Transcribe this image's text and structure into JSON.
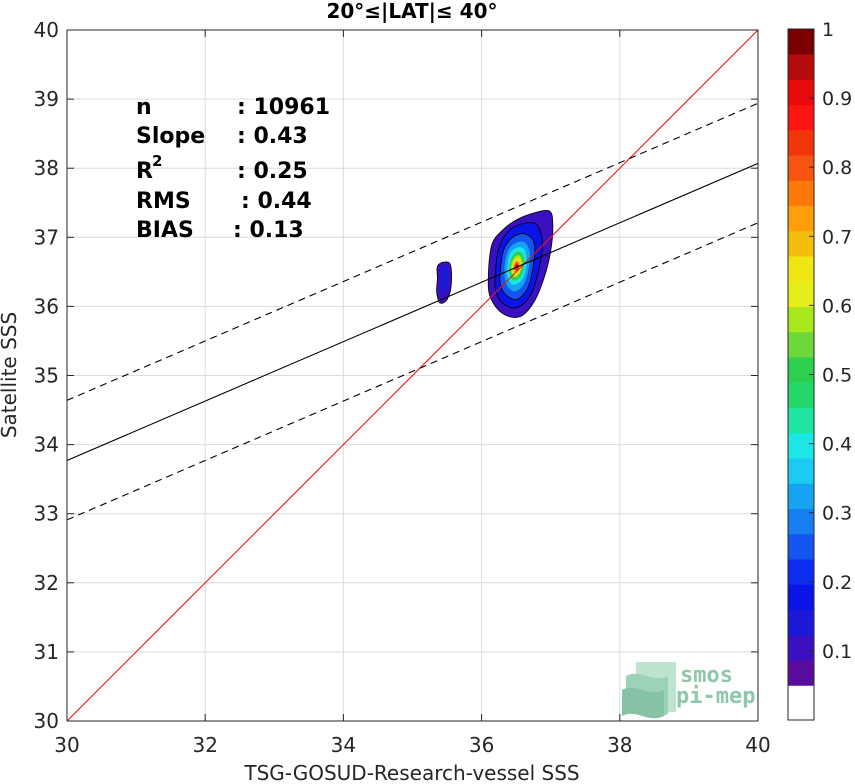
{
  "chart_data": {
    "type": "scatter",
    "title": "20°≤|LAT|≤ 40°",
    "xlabel": "TSG-GOSUD-Research-vessel SSS",
    "ylabel": "Satellite SSS",
    "xlim": [
      30,
      40
    ],
    "ylim": [
      30,
      40
    ],
    "x_ticks": [
      "30",
      "32",
      "34",
      "36",
      "38",
      "40"
    ],
    "y_ticks": [
      "30",
      "31",
      "32",
      "33",
      "34",
      "35",
      "36",
      "37",
      "38",
      "39",
      "40"
    ],
    "grid": true,
    "stats": {
      "n_label": "n",
      "n_value": ": 10961",
      "slope_label": "Slope",
      "slope_value": ": 0.43",
      "r2_label": "R",
      "r2_exp": "2",
      "r2_value": ": 0.25",
      "rms_label": "RMS",
      "rms_value": ": 0.44",
      "bias_label": "BIAS",
      "bias_value": ": 0.13"
    },
    "lines": [
      {
        "name": "identity",
        "style": "solid",
        "color": "#e8161a",
        "x": [
          30,
          40
        ],
        "y": [
          30,
          40
        ]
      },
      {
        "name": "regression",
        "style": "solid",
        "color": "#000000",
        "x": [
          30,
          40
        ],
        "y": [
          33.77,
          38.07
        ]
      },
      {
        "name": "upper bound",
        "style": "dashed",
        "color": "#000000",
        "x": [
          30,
          40
        ],
        "y": [
          34.64,
          38.94
        ]
      },
      {
        "name": "lower bound",
        "style": "dashed",
        "color": "#000000",
        "x": [
          30,
          40
        ],
        "y": [
          32.91,
          37.21
        ]
      }
    ],
    "density_contours": {
      "peak": [
        36.5,
        36.55
      ],
      "main_cluster": [
        {
          "level": 0.05,
          "color": "#3a10c0",
          "points": [
            [
              36.1,
              36.5
            ],
            [
              36.15,
              36.9
            ],
            [
              36.3,
              37.1
            ],
            [
              36.5,
              37.25
            ],
            [
              36.75,
              37.35
            ],
            [
              36.98,
              37.38
            ],
            [
              37.03,
              37.2
            ],
            [
              37.0,
              36.8
            ],
            [
              36.9,
              36.4
            ],
            [
              36.75,
              36.05
            ],
            [
              36.55,
              35.85
            ],
            [
              36.3,
              35.9
            ],
            [
              36.12,
              36.15
            ]
          ]
        },
        {
          "level": 0.1,
          "color": "#0a14e6",
          "points": [
            [
              36.2,
              36.5
            ],
            [
              36.25,
              36.85
            ],
            [
              36.4,
              37.1
            ],
            [
              36.6,
              37.2
            ],
            [
              36.8,
              37.18
            ],
            [
              36.88,
              36.9
            ],
            [
              36.82,
              36.5
            ],
            [
              36.7,
              36.15
            ],
            [
              36.5,
              35.98
            ],
            [
              36.3,
              36.05
            ],
            [
              36.2,
              36.25
            ]
          ]
        },
        {
          "level": 0.2,
          "color": "#1454ef",
          "points": [
            [
              36.27,
              36.52
            ],
            [
              36.32,
              36.82
            ],
            [
              36.45,
              37.0
            ],
            [
              36.62,
              37.05
            ],
            [
              36.76,
              36.92
            ],
            [
              36.75,
              36.6
            ],
            [
              36.66,
              36.25
            ],
            [
              36.5,
              36.1
            ],
            [
              36.34,
              36.18
            ],
            [
              36.27,
              36.32
            ]
          ]
        },
        {
          "level": 0.3,
          "color": "#16a4f2",
          "points": [
            [
              36.33,
              36.54
            ],
            [
              36.38,
              36.8
            ],
            [
              36.5,
              36.92
            ],
            [
              36.63,
              36.92
            ],
            [
              36.7,
              36.75
            ],
            [
              36.66,
              36.45
            ],
            [
              36.58,
              36.28
            ],
            [
              36.46,
              36.22
            ],
            [
              36.36,
              36.32
            ]
          ]
        },
        {
          "level": 0.4,
          "color": "#1ce6e6",
          "points": [
            [
              36.37,
              36.55
            ],
            [
              36.41,
              36.76
            ],
            [
              36.51,
              36.85
            ],
            [
              36.61,
              36.83
            ],
            [
              36.65,
              36.68
            ],
            [
              36.62,
              36.46
            ],
            [
              36.54,
              36.34
            ],
            [
              36.44,
              36.32
            ],
            [
              36.38,
              36.42
            ]
          ]
        },
        {
          "level": 0.5,
          "color": "#2cd050",
          "points": [
            [
              36.4,
              36.56
            ],
            [
              36.44,
              36.72
            ],
            [
              36.52,
              36.79
            ],
            [
              36.59,
              36.76
            ],
            [
              36.62,
              36.64
            ],
            [
              36.59,
              36.48
            ],
            [
              36.52,
              36.39
            ],
            [
              36.45,
              36.38
            ],
            [
              36.41,
              36.45
            ]
          ]
        },
        {
          "level": 0.6,
          "color": "#a8e61e",
          "points": [
            [
              36.42,
              36.56
            ],
            [
              36.46,
              36.69
            ],
            [
              36.52,
              36.74
            ],
            [
              36.57,
              36.71
            ],
            [
              36.59,
              36.6
            ],
            [
              36.56,
              36.5
            ],
            [
              36.51,
              36.43
            ],
            [
              36.46,
              36.43
            ],
            [
              36.43,
              36.49
            ]
          ]
        },
        {
          "level": 0.7,
          "color": "#f0e614",
          "points": [
            [
              36.44,
              36.56
            ],
            [
              36.47,
              36.66
            ],
            [
              36.52,
              36.7
            ],
            [
              36.56,
              36.67
            ],
            [
              36.57,
              36.58
            ],
            [
              36.55,
              36.5
            ],
            [
              36.51,
              36.46
            ],
            [
              36.47,
              36.46
            ],
            [
              36.45,
              36.5
            ]
          ]
        },
        {
          "level": 0.8,
          "color": "#ff9e0a",
          "points": [
            [
              36.46,
              36.56
            ],
            [
              36.48,
              36.64
            ],
            [
              36.52,
              36.66
            ],
            [
              36.55,
              36.63
            ],
            [
              36.55,
              36.57
            ],
            [
              36.53,
              36.51
            ],
            [
              36.5,
              36.49
            ],
            [
              36.47,
              36.5
            ]
          ]
        },
        {
          "level": 0.9,
          "color": "#f2360c",
          "points": [
            [
              36.47,
              36.56
            ],
            [
              36.49,
              36.62
            ],
            [
              36.52,
              36.63
            ],
            [
              36.54,
              36.59
            ],
            [
              36.53,
              36.54
            ],
            [
              36.51,
              36.52
            ],
            [
              36.48,
              36.53
            ]
          ]
        },
        {
          "level": 1.0,
          "color": "#b40c0c",
          "points": [
            [
              36.49,
              36.57
            ],
            [
              36.5,
              36.6
            ],
            [
              36.52,
              36.6
            ],
            [
              36.53,
              36.57
            ],
            [
              36.52,
              36.55
            ],
            [
              36.5,
              36.55
            ]
          ]
        }
      ],
      "secondary_cluster": [
        {
          "level": 0.05,
          "color": "#3a10c0",
          "points": [
            [
              35.36,
              36.4
            ],
            [
              35.36,
              36.58
            ],
            [
              35.45,
              36.64
            ],
            [
              35.55,
              36.6
            ],
            [
              35.56,
              36.3
            ],
            [
              35.5,
              36.1
            ],
            [
              35.4,
              36.05
            ],
            [
              35.35,
              36.2
            ]
          ]
        },
        {
          "level": 0.1,
          "color": "#1c18d8",
          "points": [
            [
              35.4,
              36.4
            ],
            [
              35.42,
              36.55
            ],
            [
              35.5,
              36.58
            ],
            [
              35.52,
              36.35
            ],
            [
              35.47,
              36.2
            ],
            [
              35.41,
              36.25
            ]
          ]
        }
      ]
    },
    "colorbar": {
      "ticks": [
        "0.1",
        "0.2",
        "0.3",
        "0.4",
        "0.5",
        "0.6",
        "0.7",
        "0.8",
        "0.9",
        "1"
      ],
      "tick_values": [
        0.1,
        0.2,
        0.3,
        0.4,
        0.5,
        0.6,
        0.7,
        0.8,
        0.9,
        1.0
      ],
      "range": [
        0,
        1
      ],
      "colors": [
        "#ffffff",
        "#5a0ca0",
        "#3a10c0",
        "#1c18d8",
        "#0a14e6",
        "#0c2cf0",
        "#1454ef",
        "#167eef",
        "#16a4f2",
        "#1ccaf4",
        "#1ce6e6",
        "#1ee6a0",
        "#26d86a",
        "#2cd050",
        "#6cd83a",
        "#a8e61e",
        "#e6ee1a",
        "#f0e614",
        "#f6be0c",
        "#ff9e0a",
        "#ff780a",
        "#f65410",
        "#f2360c",
        "#ff1414",
        "#e60a0a",
        "#b40c0c",
        "#7a0000"
      ]
    }
  },
  "logo": {
    "line1": "smos",
    "line2": "pi-mep",
    "color": "#8ec8a8"
  }
}
